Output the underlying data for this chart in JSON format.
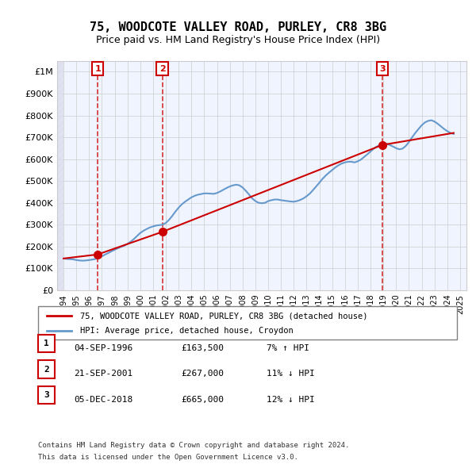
{
  "title": "75, WOODCOTE VALLEY ROAD, PURLEY, CR8 3BG",
  "subtitle": "Price paid vs. HM Land Registry's House Price Index (HPI)",
  "legend_label_red": "75, WOODCOTE VALLEY ROAD, PURLEY, CR8 3BG (detached house)",
  "legend_label_blue": "HPI: Average price, detached house, Croydon",
  "footer_line1": "Contains HM Land Registry data © Crown copyright and database right 2024.",
  "footer_line2": "This data is licensed under the Open Government Licence v3.0.",
  "transactions": [
    {
      "num": 1,
      "date": "04-SEP-1996",
      "price": "£163,500",
      "hpi": "7% ↑ HPI",
      "year": 1996.67
    },
    {
      "num": 2,
      "date": "21-SEP-2001",
      "price": "£267,000",
      "hpi": "11% ↓ HPI",
      "year": 2001.72
    },
    {
      "num": 3,
      "date": "05-DEC-2018",
      "price": "£665,000",
      "hpi": "12% ↓ HPI",
      "year": 2018.92
    }
  ],
  "hpi_data": {
    "years": [
      1994.0,
      1994.25,
      1994.5,
      1994.75,
      1995.0,
      1995.25,
      1995.5,
      1995.75,
      1996.0,
      1996.25,
      1996.5,
      1996.75,
      1997.0,
      1997.25,
      1997.5,
      1997.75,
      1998.0,
      1998.25,
      1998.5,
      1998.75,
      1999.0,
      1999.25,
      1999.5,
      1999.75,
      2000.0,
      2000.25,
      2000.5,
      2000.75,
      2001.0,
      2001.25,
      2001.5,
      2001.75,
      2002.0,
      2002.25,
      2002.5,
      2002.75,
      2003.0,
      2003.25,
      2003.5,
      2003.75,
      2004.0,
      2004.25,
      2004.5,
      2004.75,
      2005.0,
      2005.25,
      2005.5,
      2005.75,
      2006.0,
      2006.25,
      2006.5,
      2006.75,
      2007.0,
      2007.25,
      2007.5,
      2007.75,
      2008.0,
      2008.25,
      2008.5,
      2008.75,
      2009.0,
      2009.25,
      2009.5,
      2009.75,
      2010.0,
      2010.25,
      2010.5,
      2010.75,
      2011.0,
      2011.25,
      2011.5,
      2011.75,
      2012.0,
      2012.25,
      2012.5,
      2012.75,
      2013.0,
      2013.25,
      2013.5,
      2013.75,
      2014.0,
      2014.25,
      2014.5,
      2014.75,
      2015.0,
      2015.25,
      2015.5,
      2015.75,
      2016.0,
      2016.25,
      2016.5,
      2016.75,
      2017.0,
      2017.25,
      2017.5,
      2017.75,
      2018.0,
      2018.25,
      2018.5,
      2018.75,
      2019.0,
      2019.25,
      2019.5,
      2019.75,
      2020.0,
      2020.25,
      2020.5,
      2020.75,
      2021.0,
      2021.25,
      2021.5,
      2021.75,
      2022.0,
      2022.25,
      2022.5,
      2022.75,
      2023.0,
      2023.25,
      2023.5,
      2023.75,
      2024.0,
      2024.25,
      2024.5
    ],
    "values": [
      145000,
      143000,
      142000,
      141000,
      138000,
      136000,
      135000,
      136000,
      138000,
      140000,
      143000,
      148000,
      155000,
      163000,
      170000,
      178000,
      185000,
      192000,
      198000,
      204000,
      212000,
      222000,
      234000,
      248000,
      262000,
      272000,
      280000,
      287000,
      292000,
      296000,
      298000,
      300000,
      308000,
      322000,
      340000,
      360000,
      378000,
      393000,
      405000,
      415000,
      425000,
      432000,
      437000,
      440000,
      443000,
      443000,
      442000,
      441000,
      445000,
      452000,
      460000,
      468000,
      475000,
      480000,
      483000,
      480000,
      470000,
      455000,
      438000,
      420000,
      408000,
      400000,
      398000,
      400000,
      408000,
      412000,
      415000,
      415000,
      412000,
      410000,
      408000,
      406000,
      405000,
      408000,
      413000,
      420000,
      430000,
      442000,
      458000,
      475000,
      492000,
      510000,
      525000,
      538000,
      550000,
      562000,
      572000,
      580000,
      585000,
      588000,
      588000,
      585000,
      590000,
      598000,
      610000,
      622000,
      635000,
      648000,
      658000,
      665000,
      668000,
      670000,
      665000,
      658000,
      650000,
      645000,
      648000,
      660000,
      678000,
      700000,
      720000,
      738000,
      755000,
      768000,
      775000,
      778000,
      772000,
      762000,
      750000,
      738000,
      728000,
      720000,
      715000
    ]
  },
  "price_line": {
    "years": [
      1994.0,
      1996.67,
      2001.72,
      2018.92,
      2024.5
    ],
    "values": [
      145000,
      163500,
      267000,
      665000,
      720000
    ]
  },
  "sale_years": [
    1996.67,
    2001.72,
    2018.92
  ],
  "sale_values": [
    163500,
    267000,
    665000
  ],
  "sale_labels": [
    "1",
    "2",
    "3"
  ],
  "ylim": [
    0,
    1050000
  ],
  "xlim": [
    1993.5,
    2025.5
  ],
  "yticks": [
    0,
    100000,
    200000,
    300000,
    400000,
    500000,
    600000,
    700000,
    800000,
    900000,
    1000000
  ],
  "ytick_labels": [
    "£0",
    "£100K",
    "£200K",
    "£300K",
    "£400K",
    "£500K",
    "£600K",
    "£700K",
    "£800K",
    "£900K",
    "£1M"
  ],
  "xtick_years": [
    1994,
    1995,
    1996,
    1997,
    1998,
    1999,
    2000,
    2001,
    2002,
    2003,
    2004,
    2005,
    2006,
    2007,
    2008,
    2009,
    2010,
    2011,
    2012,
    2013,
    2014,
    2015,
    2016,
    2017,
    2018,
    2019,
    2020,
    2021,
    2022,
    2023,
    2024,
    2025
  ],
  "red_color": "#cc0000",
  "blue_color": "#6699cc",
  "dashed_color": "#cc0000",
  "bg_color": "#f0f4ff",
  "plot_bg": "#ffffff",
  "grid_color": "#cccccc",
  "hatch_color": "#ddddee"
}
